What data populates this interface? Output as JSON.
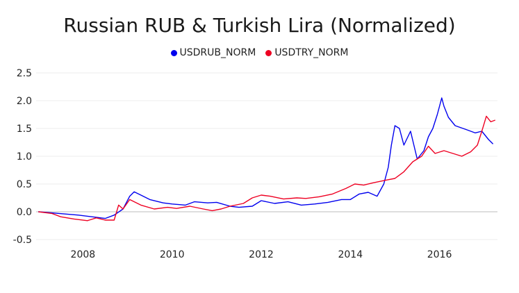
{
  "chart_data": {
    "type": "line",
    "title": "Russian RUB & Turkish Lira (Normalized)",
    "xlabel": "",
    "ylabel": "",
    "xlim": [
      2006.95,
      2017.3
    ],
    "ylim": [
      -0.55,
      2.55
    ],
    "x_ticks": [
      2008,
      2010,
      2012,
      2014,
      2016
    ],
    "x_tick_labels": [
      "2008",
      "2010",
      "2012",
      "2014",
      "2016"
    ],
    "y_ticks": [
      -0.5,
      0.0,
      0.5,
      1.0,
      1.5,
      2.0,
      2.5
    ],
    "y_tick_labels": [
      "-0.5",
      "0.0",
      "0.5",
      "1.0",
      "1.5",
      "2.0",
      "2.5"
    ],
    "grid": true,
    "legend_position": "top-center",
    "series": [
      {
        "name": "USDRUB_NORM",
        "color": "#0000ee",
        "points": [
          [
            2007.0,
            0.0
          ],
          [
            2007.3,
            -0.02
          ],
          [
            2007.6,
            -0.04
          ],
          [
            2007.9,
            -0.06
          ],
          [
            2008.2,
            -0.09
          ],
          [
            2008.5,
            -0.12
          ],
          [
            2008.7,
            -0.06
          ],
          [
            2008.9,
            0.05
          ],
          [
            2009.05,
            0.28
          ],
          [
            2009.15,
            0.36
          ],
          [
            2009.3,
            0.3
          ],
          [
            2009.5,
            0.22
          ],
          [
            2009.8,
            0.16
          ],
          [
            2010.0,
            0.14
          ],
          [
            2010.3,
            0.12
          ],
          [
            2010.5,
            0.18
          ],
          [
            2010.8,
            0.16
          ],
          [
            2011.0,
            0.17
          ],
          [
            2011.3,
            0.1
          ],
          [
            2011.5,
            0.08
          ],
          [
            2011.8,
            0.1
          ],
          [
            2012.0,
            0.2
          ],
          [
            2012.3,
            0.15
          ],
          [
            2012.6,
            0.18
          ],
          [
            2012.9,
            0.12
          ],
          [
            2013.2,
            0.14
          ],
          [
            2013.5,
            0.17
          ],
          [
            2013.8,
            0.22
          ],
          [
            2014.0,
            0.22
          ],
          [
            2014.2,
            0.32
          ],
          [
            2014.4,
            0.35
          ],
          [
            2014.6,
            0.28
          ],
          [
            2014.75,
            0.5
          ],
          [
            2014.85,
            0.8
          ],
          [
            2014.92,
            1.2
          ],
          [
            2015.0,
            1.55
          ],
          [
            2015.1,
            1.5
          ],
          [
            2015.2,
            1.2
          ],
          [
            2015.35,
            1.45
          ],
          [
            2015.5,
            0.95
          ],
          [
            2015.65,
            1.1
          ],
          [
            2015.75,
            1.35
          ],
          [
            2015.85,
            1.5
          ],
          [
            2015.95,
            1.75
          ],
          [
            2016.05,
            2.05
          ],
          [
            2016.1,
            1.9
          ],
          [
            2016.2,
            1.7
          ],
          [
            2016.35,
            1.55
          ],
          [
            2016.6,
            1.48
          ],
          [
            2016.8,
            1.42
          ],
          [
            2016.95,
            1.45
          ],
          [
            2017.1,
            1.3
          ],
          [
            2017.2,
            1.22
          ]
        ]
      },
      {
        "name": "USDTRY_NORM",
        "color": "#ee0022",
        "points": [
          [
            2007.0,
            0.0
          ],
          [
            2007.3,
            -0.03
          ],
          [
            2007.5,
            -0.09
          ],
          [
            2007.8,
            -0.13
          ],
          [
            2008.1,
            -0.16
          ],
          [
            2008.3,
            -0.11
          ],
          [
            2008.5,
            -0.15
          ],
          [
            2008.7,
            -0.15
          ],
          [
            2008.8,
            0.12
          ],
          [
            2008.9,
            0.05
          ],
          [
            2009.05,
            0.22
          ],
          [
            2009.3,
            0.12
          ],
          [
            2009.6,
            0.05
          ],
          [
            2009.9,
            0.08
          ],
          [
            2010.1,
            0.06
          ],
          [
            2010.4,
            0.1
          ],
          [
            2010.7,
            0.05
          ],
          [
            2010.9,
            0.02
          ],
          [
            2011.1,
            0.05
          ],
          [
            2011.3,
            0.1
          ],
          [
            2011.6,
            0.15
          ],
          [
            2011.8,
            0.25
          ],
          [
            2012.0,
            0.3
          ],
          [
            2012.2,
            0.28
          ],
          [
            2012.5,
            0.23
          ],
          [
            2012.8,
            0.25
          ],
          [
            2013.0,
            0.24
          ],
          [
            2013.3,
            0.27
          ],
          [
            2013.6,
            0.32
          ],
          [
            2013.9,
            0.42
          ],
          [
            2014.1,
            0.5
          ],
          [
            2014.3,
            0.48
          ],
          [
            2014.5,
            0.52
          ],
          [
            2014.8,
            0.57
          ],
          [
            2015.0,
            0.6
          ],
          [
            2015.2,
            0.72
          ],
          [
            2015.4,
            0.9
          ],
          [
            2015.6,
            1.0
          ],
          [
            2015.75,
            1.18
          ],
          [
            2015.9,
            1.05
          ],
          [
            2016.1,
            1.1
          ],
          [
            2016.3,
            1.05
          ],
          [
            2016.5,
            1.0
          ],
          [
            2016.7,
            1.08
          ],
          [
            2016.85,
            1.2
          ],
          [
            2016.95,
            1.45
          ],
          [
            2017.05,
            1.72
          ],
          [
            2017.15,
            1.62
          ],
          [
            2017.25,
            1.65
          ]
        ]
      }
    ]
  }
}
